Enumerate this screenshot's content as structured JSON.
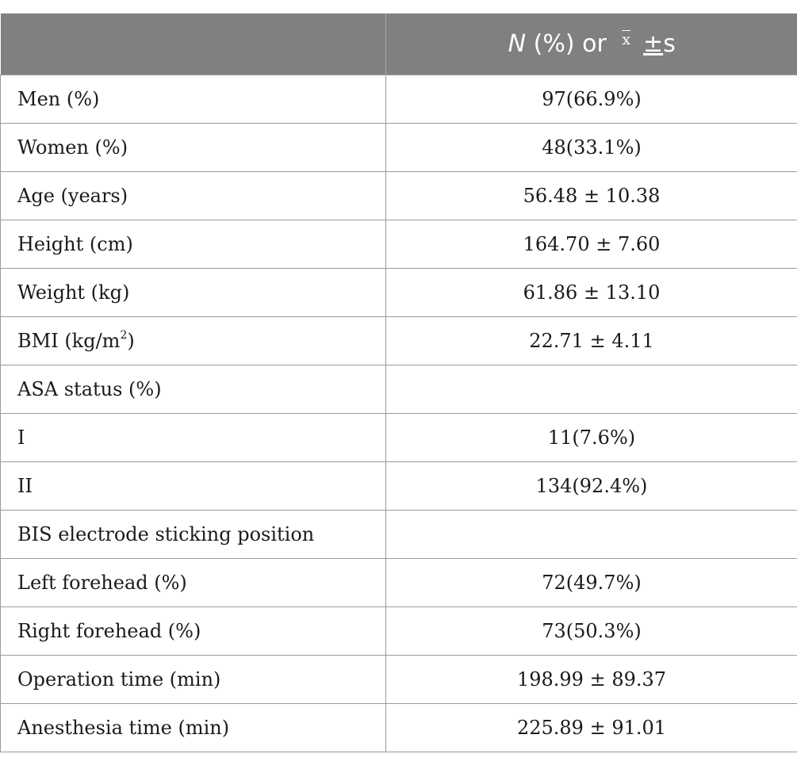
{
  "header": {
    "col1": "",
    "col2_n": "N",
    "col2_pct": " (%) or ",
    "col2_xbar": "x",
    "col2_pm": "±",
    "col2_s": "s"
  },
  "rows": [
    {
      "label": "Men (%)",
      "value": "97(66.9%)"
    },
    {
      "label": "Women (%)",
      "value": "48(33.1%)"
    },
    {
      "label": "Age (years)",
      "value": "56.48 ± 10.38"
    },
    {
      "label": "Height (cm)",
      "value": "164.70 ± 7.60"
    },
    {
      "label": "Weight (kg)",
      "value": "61.86 ± 13.10"
    },
    {
      "label": "BMI (kg/m",
      "label_sup": "2",
      "label_end": ")",
      "value": "22.71 ± 4.11"
    },
    {
      "label": "ASA status (%)",
      "value": ""
    },
    {
      "label": "I",
      "value": "11(7.6%)"
    },
    {
      "label": "II",
      "value": "134(92.4%)"
    },
    {
      "label": "BIS electrode sticking position",
      "value": ""
    },
    {
      "label": "Left forehead (%)",
      "value": "72(49.7%)"
    },
    {
      "label": "Right forehead (%)",
      "value": "73(50.3%)"
    },
    {
      "label": "Operation time (min)",
      "value": "198.99 ± 89.37"
    },
    {
      "label": "Anesthesia time (min)",
      "value": "225.89 ± 91.01"
    }
  ]
}
